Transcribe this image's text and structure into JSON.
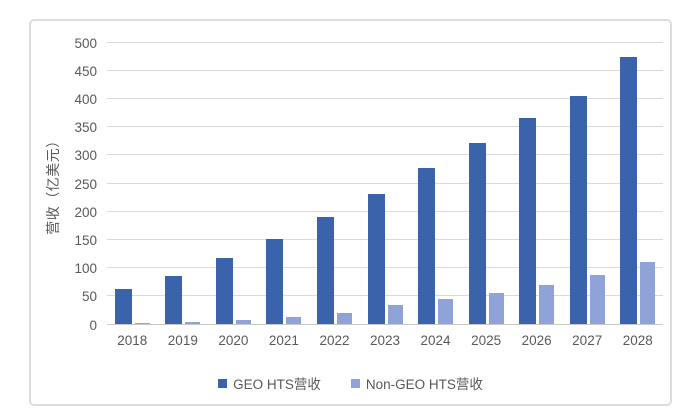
{
  "chart_data": {
    "type": "bar",
    "title": "",
    "categories": [
      "2018",
      "2019",
      "2020",
      "2021",
      "2022",
      "2023",
      "2024",
      "2025",
      "2026",
      "2027",
      "2028"
    ],
    "series": [
      {
        "name": "GEO HTS营收",
        "color": "#3b63ac",
        "values": [
          62,
          86,
          117,
          151,
          190,
          232,
          278,
          322,
          366,
          406,
          475
        ]
      },
      {
        "name": "Non-GEO HTS营收",
        "color": "#8fa3d8",
        "values": [
          2,
          3,
          7,
          13,
          19,
          33,
          44,
          56,
          70,
          87,
          110
        ]
      }
    ],
    "xlabel": "",
    "ylabel": "营收（亿美元）",
    "ylim": [
      0,
      500
    ],
    "ytick_step": 50,
    "grid": true,
    "legend_position": "bottom"
  },
  "style": {
    "grid_color": "#d9d9d9",
    "axis_line_color": "#c8c8c8",
    "text_color": "#595959",
    "frame_border_color": "#dcdce0",
    "background": "#ffffff"
  }
}
